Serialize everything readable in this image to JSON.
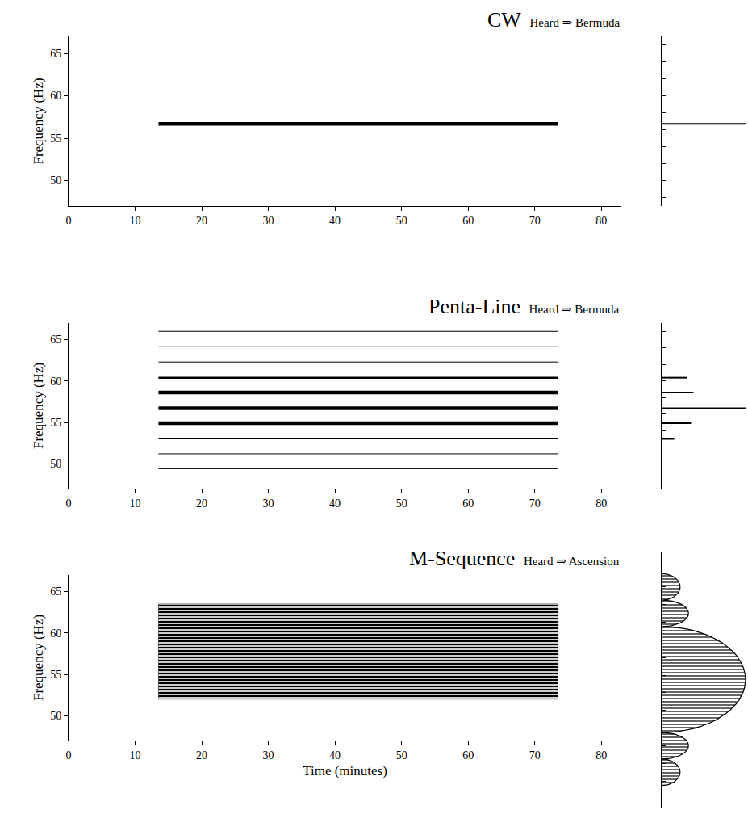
{
  "chart_data": [
    {
      "type": "spectrogram",
      "title": "CW",
      "subtitle": "Heard ⇒ Bermuda",
      "y_label": "Frequency (Hz)",
      "grid": false,
      "xlim": [
        0,
        83
      ],
      "xticks": [
        0,
        10,
        20,
        30,
        40,
        50,
        60,
        70,
        80
      ],
      "ylim": [
        47,
        67
      ],
      "yticks": [
        50,
        55,
        60,
        65
      ],
      "lines": [
        {
          "frequency": 56.7,
          "start": 13.5,
          "end": 73.5,
          "line_style": "bold"
        }
      ],
      "spectrum": {
        "type": "line_spectrum",
        "frequency": [
          56.7
        ],
        "amplitude": [
          1.0
        ],
        "xlim": [
          0,
          1
        ],
        "ylim": [
          47,
          67
        ],
        "yticks": [
          48,
          50,
          52,
          54,
          56,
          58,
          60,
          62,
          64,
          66
        ],
        "tick_labels": false
      }
    },
    {
      "type": "spectrogram",
      "title": "Penta-Line",
      "subtitle": "Heard ⇒ Bermuda",
      "y_label": "Frequency (Hz)",
      "grid": false,
      "xlim": [
        0,
        83
      ],
      "xticks": [
        0,
        10,
        20,
        30,
        40,
        50,
        60,
        70,
        80
      ],
      "ylim": [
        47,
        67
      ],
      "yticks": [
        50,
        55,
        60,
        65
      ],
      "lines": [
        {
          "frequency": 49.4,
          "start": 13.5,
          "end": 73.5,
          "line_style": "thin"
        },
        {
          "frequency": 51.2,
          "start": 13.5,
          "end": 73.5,
          "line_style": "thin"
        },
        {
          "frequency": 53.0,
          "start": 13.5,
          "end": 73.5,
          "line_style": "thin"
        },
        {
          "frequency": 54.9,
          "start": 13.5,
          "end": 73.5,
          "line_style": "bold"
        },
        {
          "frequency": 56.7,
          "start": 13.5,
          "end": 73.5,
          "line_style": "bold"
        },
        {
          "frequency": 58.6,
          "start": 13.5,
          "end": 73.5,
          "line_style": "bold"
        },
        {
          "frequency": 60.4,
          "start": 13.5,
          "end": 73.5,
          "line_style": "medium"
        },
        {
          "frequency": 62.3,
          "start": 13.5,
          "end": 73.5,
          "line_style": "thin"
        },
        {
          "frequency": 64.2,
          "start": 13.5,
          "end": 73.5,
          "line_style": "thin"
        },
        {
          "frequency": 66.0,
          "start": 13.5,
          "end": 73.5,
          "line_style": "thin"
        }
      ],
      "spectrum": {
        "type": "line_spectrum",
        "frequency": [
          53.0,
          54.9,
          56.7,
          58.6,
          60.4
        ],
        "amplitude": [
          0.15,
          0.35,
          1.0,
          0.38,
          0.3
        ],
        "xlim": [
          0,
          1
        ],
        "ylim": [
          47,
          67
        ],
        "yticks": [
          48,
          50,
          52,
          54,
          56,
          58,
          60,
          62,
          64,
          66
        ],
        "tick_labels": false
      }
    },
    {
      "type": "spectrogram",
      "title": "M-Sequence",
      "subtitle": "Heard ⇒ Ascension",
      "x_label": "Time (minutes)",
      "y_label": "Frequency (Hz)",
      "grid": false,
      "xlim": [
        0,
        83
      ],
      "xticks": [
        0,
        10,
        20,
        30,
        40,
        50,
        60,
        70,
        80
      ],
      "ylim": [
        47,
        67
      ],
      "yticks": [
        50,
        55,
        60,
        65
      ],
      "bands": [
        {
          "frequency_low": 52.0,
          "frequency_high": 63.5,
          "start": 13.5,
          "end": 73.5
        }
      ],
      "spectrum": {
        "type": "lobes",
        "lobes": [
          {
            "frequency_low": 45.5,
            "frequency_high": 48.5,
            "amplitude": 0.22
          },
          {
            "frequency_low": 48.5,
            "frequency_high": 51.5,
            "amplitude": 0.32
          },
          {
            "frequency_low": 51.5,
            "frequency_high": 63.5,
            "amplitude": 1.0
          },
          {
            "frequency_low": 63.5,
            "frequency_high": 66.5,
            "amplitude": 0.32
          },
          {
            "frequency_low": 66.5,
            "frequency_high": 69.5,
            "amplitude": 0.22
          }
        ],
        "xlim": [
          0,
          1
        ],
        "ylim": [
          43,
          72
        ],
        "yticks": [
          44,
          46,
          48,
          50,
          52,
          54,
          56,
          58,
          60,
          62,
          64,
          66,
          68,
          70
        ],
        "tick_labels": false
      }
    }
  ]
}
